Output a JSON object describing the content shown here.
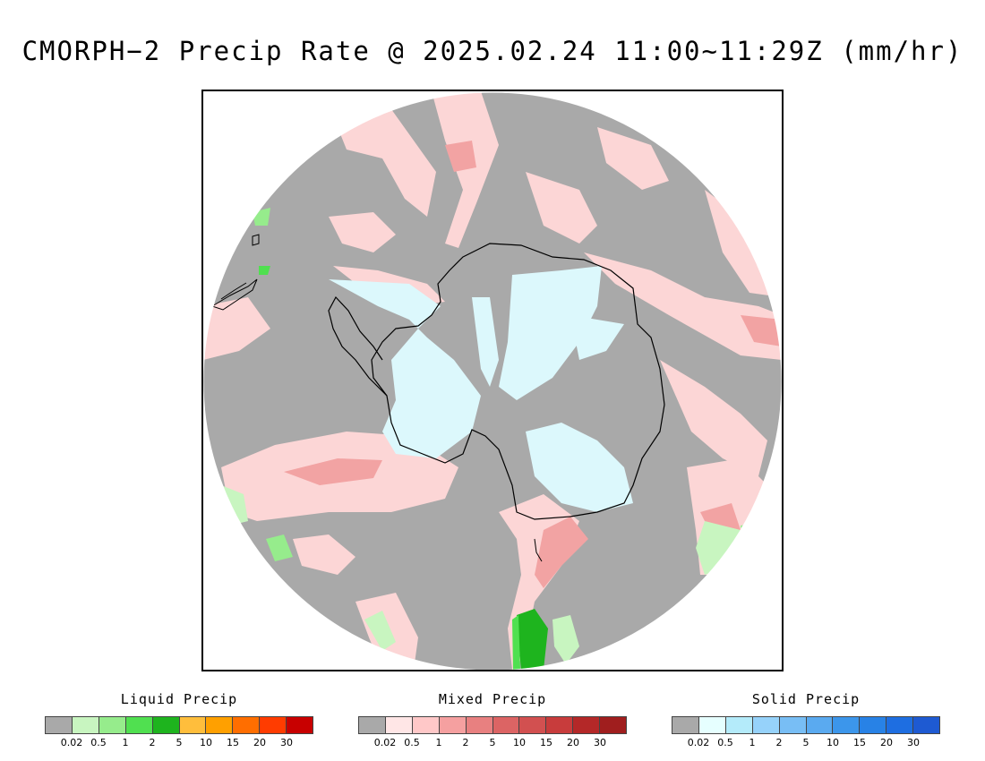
{
  "title": "CMORPH−2 Precip Rate @ 2025.02.24 11:00~11:29Z (mm/hr)",
  "map": {
    "projection": "south-polar-stereographic",
    "ocean_no_precip_color": "#a9a9a9",
    "coastline_color": "#000000",
    "regions_depicted": [
      "Antarctica",
      "Southern Ocean",
      "South America (Tierra del Fuego)",
      "New Zealand",
      "Tasmania"
    ]
  },
  "legends": [
    {
      "title": "Liquid Precip",
      "colors": [
        "#a9a9a9",
        "#c8f5c0",
        "#96ec8c",
        "#50e050",
        "#1eb41e",
        "#ffbe3c",
        "#ffa000",
        "#ff6e00",
        "#ff3c00",
        "#c80000"
      ],
      "ticks": [
        "0.02",
        "0.5",
        "1",
        "2",
        "5",
        "10",
        "15",
        "20",
        "30"
      ]
    },
    {
      "title": "Mixed Precip",
      "colors": [
        "#a9a9a9",
        "#ffe6e6",
        "#ffc8c8",
        "#f5a0a0",
        "#e88080",
        "#dc6464",
        "#d25050",
        "#c83c3c",
        "#b42828",
        "#a01e1e"
      ],
      "ticks": [
        "0.02",
        "0.5",
        "1",
        "2",
        "5",
        "10",
        "15",
        "20",
        "30"
      ]
    },
    {
      "title": "Solid Precip",
      "colors": [
        "#a9a9a9",
        "#e6ffff",
        "#b4ebfa",
        "#96d2fa",
        "#78bef5",
        "#5aaaf0",
        "#3c96eb",
        "#2882e6",
        "#1e6ee1",
        "#1e5ad2"
      ],
      "ticks": [
        "0.02",
        "0.5",
        "1",
        "2",
        "5",
        "10",
        "15",
        "20",
        "30"
      ]
    }
  ]
}
